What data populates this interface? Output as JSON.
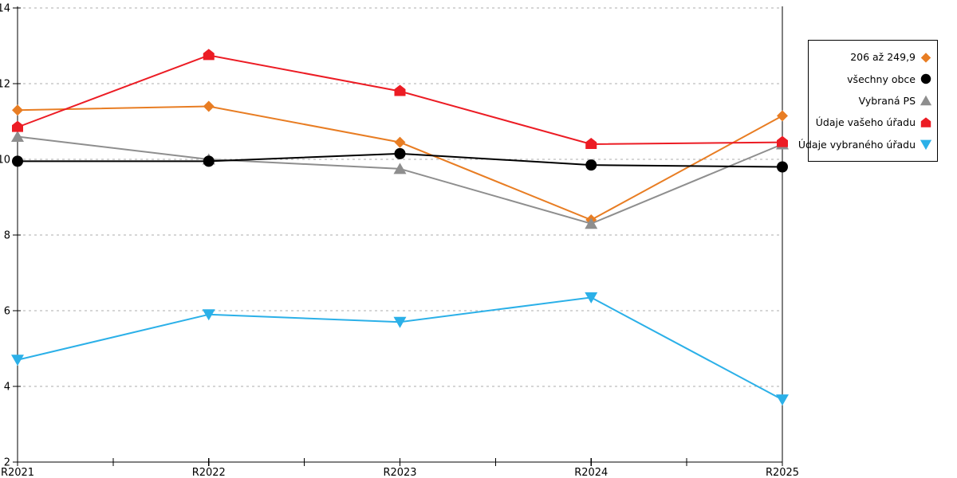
{
  "chart_data": {
    "type": "line",
    "title": "",
    "xlabel": "",
    "ylabel": "",
    "categories": [
      "R2021",
      "R2022",
      "R2023",
      "R2024",
      "R2025"
    ],
    "ylim": [
      2,
      14
    ],
    "yticks": [
      2,
      4,
      6,
      8,
      10,
      12,
      14
    ],
    "grid": "horizontal-dashed",
    "legend_position": "right-outside",
    "series": [
      {
        "id": "range-206-249",
        "name": "206 až 249,9",
        "color": "#E87D23",
        "marker": "diamond",
        "values": [
          11.3,
          11.4,
          10.45,
          8.4,
          11.15
        ]
      },
      {
        "id": "vsechny-obce",
        "name": "všechny obce",
        "color": "#000000",
        "marker": "circle",
        "values": [
          9.95,
          9.95,
          10.15,
          9.85,
          9.8
        ]
      },
      {
        "id": "vybrana-ps",
        "name": "Vybraná PS",
        "color": "#8E8E8E",
        "marker": "triangle-up",
        "values": [
          10.6,
          10.0,
          9.75,
          8.3,
          10.4
        ]
      },
      {
        "id": "udaje-vaseho-uradu",
        "name": "Údaje vašeho úřadu",
        "color": "#EC1C24",
        "marker": "pentagon",
        "values": [
          10.85,
          12.75,
          11.8,
          10.4,
          10.45
        ]
      },
      {
        "id": "udaje-vybraneho-uradu",
        "name": "Údaje vybraného úřadu",
        "color": "#2BB0E8",
        "marker": "triangle-down",
        "values": [
          4.7,
          5.9,
          5.7,
          6.35,
          3.65
        ]
      }
    ],
    "draw_order": [
      0,
      2,
      1,
      3,
      4
    ]
  },
  "colors": {
    "axis": "#000000",
    "gridline": "#ADADAD",
    "background": "#FFFFFF",
    "text": "#000000"
  }
}
